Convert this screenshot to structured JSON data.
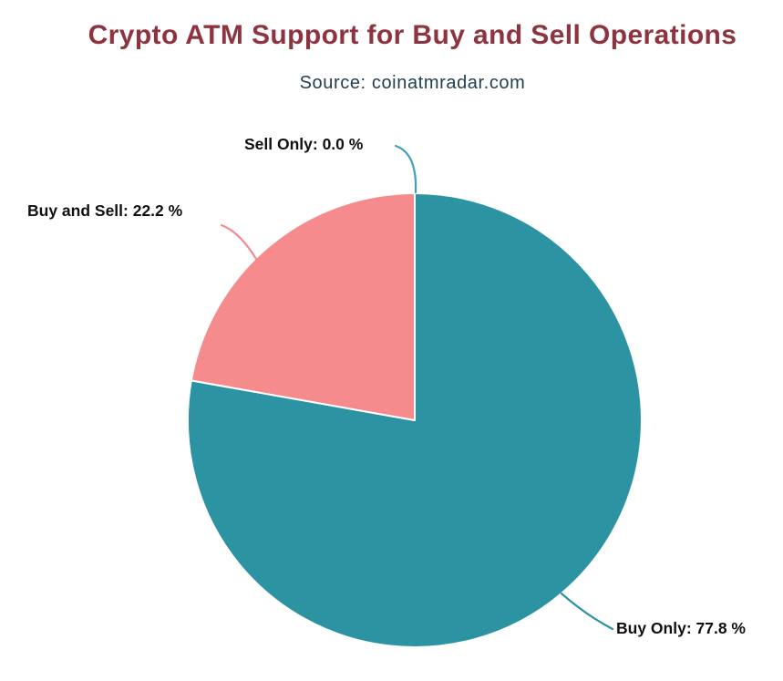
{
  "chart_data": {
    "type": "pie",
    "title": "Crypto ATM Support for Buy and Sell Operations",
    "subtitle": "Source: coinatmradar.com",
    "legend": "none",
    "background": "#ffffff",
    "direction": "clockwise",
    "start_angle": "top",
    "slices": [
      {
        "label": "Buy Only",
        "value": 77.8,
        "unit": "%",
        "color": "#2b93a2",
        "label_text": "Buy Only: 77.8 %"
      },
      {
        "label": "Buy and Sell",
        "value": 22.2,
        "unit": "%",
        "color": "#f68b8d",
        "label_text": "Buy and Sell: 22.2 %"
      },
      {
        "label": "Sell Only",
        "value": 0.0,
        "unit": "%",
        "color": "#3f9fbe",
        "label_text": "Sell Only: 0.0 %"
      }
    ]
  },
  "colors": {
    "title": "#8e3440",
    "subtitle": "#21404f",
    "label_text": "#111111",
    "slice_separator": "#ffffff"
  }
}
